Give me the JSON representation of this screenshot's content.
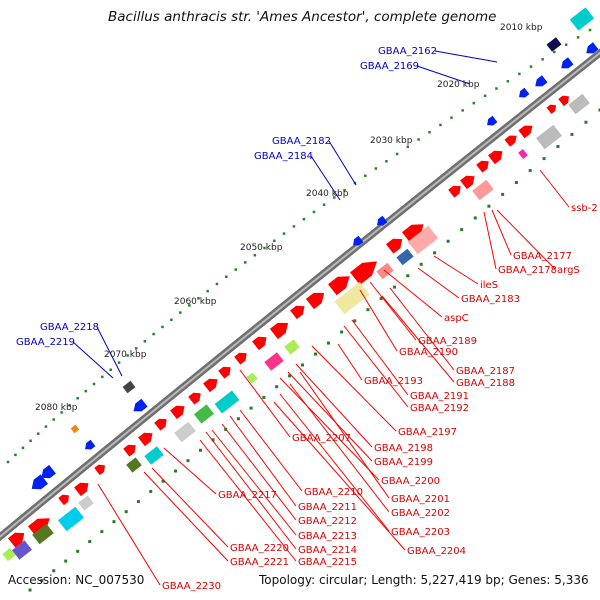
{
  "title": "Bacillus anthracis str. 'Ames Ancestor', complete genome",
  "footer": {
    "accession": "Accession: NC_007530",
    "meta": "Topology: circular; Length: 5,227,419 bp; Genes: 5,336"
  },
  "colors": {
    "backbone": "#888888",
    "forward_feature": "#ff0000",
    "reverse_feature": "#0022ee",
    "red_label": "#dd0000",
    "blue_label": "#0000cc",
    "tick": "#228822"
  },
  "scale_labels": [
    "2010 kbp",
    "2020 kbp",
    "2030 kbp",
    "2040 kbp",
    "2050 kbp",
    "2060 kbp",
    "2070 kbp",
    "2080 kbp"
  ],
  "blue_gene_labels": [
    "GBAA_2162",
    "GBAA_2169",
    "GBAA_2182",
    "GBAA_2184",
    "GBAA_2218",
    "GBAA_2219"
  ],
  "red_gene_labels": [
    "ssb-2",
    "GBAA_2177",
    "GBAA_2178",
    "argS",
    "ileS",
    "GBAA_2183",
    "aspC",
    "GBAA_2189",
    "GBAA_2190",
    "GBAA_2187",
    "GBAA_2188",
    "GBAA_2193",
    "GBAA_2191",
    "GBAA_2192",
    "GBAA_2197",
    "GBAA_2207",
    "GBAA_2198",
    "GBAA_2199",
    "GBAA_2200",
    "GBAA_2217",
    "GBAA_2210",
    "GBAA_2201",
    "GBAA_2211",
    "GBAA_2202",
    "GBAA_2212",
    "GBAA_2203",
    "GBAA_2213",
    "GBAA_2220",
    "GBAA_2214",
    "GBAA_2204",
    "GBAA_2221",
    "GBAA_2215",
    "GBAA_2230"
  ]
}
